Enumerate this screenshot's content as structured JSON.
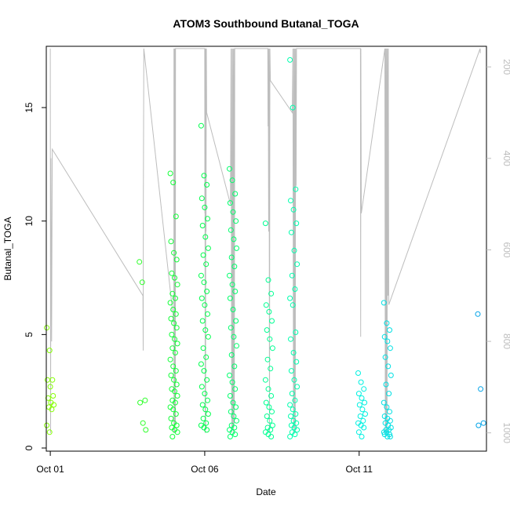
{
  "chart_data": {
    "type": "scatter",
    "title": "ATOM3 Southbound Butanal_TOGA",
    "xlabel": "Date",
    "ylabel": "Butanal_TOGA",
    "xlim": [
      "2017-09-30T20:53:00",
      "2017-10-15T02:56:00"
    ],
    "ylim": [
      0,
      17.7
    ],
    "y2lim": [
      1040,
      155
    ],
    "x_ticks": [
      {
        "value": "2017-10-01T00:00:00",
        "label": "Oct 01"
      },
      {
        "value": "2017-10-06T00:00:00",
        "label": "Oct 06"
      },
      {
        "value": "2017-10-11T00:00:00",
        "label": "Oct 11"
      }
    ],
    "y_ticks": [
      0,
      5,
      10,
      15
    ],
    "y2_ticks": [
      200,
      400,
      600,
      800,
      1000
    ],
    "color_ramp": [
      "#88ff00",
      "#00ff40",
      "#00ffe0",
      "#00a0e8"
    ],
    "line_color": "#bdbdbd",
    "clusters": [
      {
        "t": "2017-10-01T00:00:00",
        "values": [
          5.3,
          4.3,
          3.0,
          3.0,
          2.7,
          2.3,
          2.2,
          2.0,
          1.9,
          1.8,
          1.7,
          1.0,
          0.7
        ]
      },
      {
        "t": "2017-10-04T00:00:00",
        "values": [
          8.2,
          7.3,
          2.1,
          2.0,
          1.1,
          0.8
        ]
      },
      {
        "t": "2017-10-05T00:00:00",
        "values": [
          12.1,
          11.7,
          10.2,
          9.1,
          8.6,
          8.3,
          7.7,
          7.5,
          7.2,
          6.8,
          6.6,
          6.4,
          6.1,
          5.9,
          5.7,
          5.5,
          5.3,
          5.0,
          4.8,
          4.6,
          4.4,
          4.2,
          3.9,
          3.6,
          3.4,
          3.2,
          3.0,
          2.8,
          2.6,
          2.5,
          2.3,
          2.1,
          2.0,
          1.8,
          1.7,
          1.5,
          1.3,
          1.1,
          1.0,
          0.9,
          0.8,
          0.7,
          0.5
        ]
      },
      {
        "t": "2017-10-06T00:00:00",
        "values": [
          14.2,
          12.0,
          11.6,
          11.0,
          10.6,
          10.1,
          9.8,
          9.3,
          8.8,
          8.5,
          8.1,
          7.6,
          7.3,
          6.9,
          6.6,
          6.3,
          5.9,
          5.6,
          5.2,
          4.9,
          4.4,
          4.0,
          3.7,
          3.4,
          3.0,
          2.7,
          2.4,
          2.1,
          1.9,
          1.7,
          1.5,
          1.3,
          1.1,
          1.0,
          0.9,
          0.8
        ]
      },
      {
        "t": "2017-10-06T22:00:00",
        "values": [
          12.3,
          11.8,
          11.2,
          10.8,
          10.4,
          10.0,
          9.6,
          9.2,
          8.8,
          8.4,
          8.0,
          7.6,
          7.2,
          6.9,
          6.6,
          6.1,
          5.6,
          5.3,
          4.9,
          4.5,
          4.1,
          3.6,
          3.2,
          2.9,
          2.6,
          2.3,
          2.0,
          1.8,
          1.6,
          1.4,
          1.2,
          1.0,
          0.9,
          0.8,
          0.7,
          0.6,
          0.5
        ]
      },
      {
        "t": "2017-10-08T02:00:00",
        "values": [
          9.9,
          7.4,
          6.8,
          6.3,
          6.0,
          5.6,
          5.2,
          4.8,
          4.4,
          3.9,
          3.5,
          3.0,
          2.6,
          2.3,
          2.0,
          1.8,
          1.6,
          1.4,
          1.2,
          1.0,
          0.9,
          0.8,
          0.7,
          0.6,
          0.5
        ]
      },
      {
        "t": "2017-10-08T21:00:00",
        "values": [
          17.1,
          15.0,
          11.4,
          10.9,
          10.5,
          9.9,
          9.5,
          8.7,
          8.1,
          7.6,
          7.0,
          6.6,
          6.3,
          5.1,
          4.8,
          4.2,
          3.8,
          3.4,
          3.0,
          2.7,
          2.4,
          2.1,
          1.9,
          1.7,
          1.5,
          1.4,
          1.2,
          1.1,
          1.0,
          0.9,
          0.8,
          0.7,
          0.6,
          0.5
        ]
      },
      {
        "t": "2017-10-11T02:00:00",
        "values": [
          3.3,
          2.9,
          2.6,
          2.4,
          2.2,
          2.0,
          1.9,
          1.7,
          1.5,
          1.4,
          1.2,
          1.1,
          1.0,
          0.9,
          0.7,
          0.5
        ]
      },
      {
        "t": "2017-10-11T22:00:00",
        "values": [
          6.4,
          5.5,
          5.2,
          4.9,
          4.7,
          4.4,
          4.0,
          3.6,
          3.2,
          2.8,
          2.4,
          2.0,
          1.8,
          1.6,
          1.4,
          1.3,
          1.2,
          1.1,
          1.0,
          0.9,
          0.8,
          0.8,
          0.7,
          0.7,
          0.6,
          0.6,
          0.5,
          0.5
        ]
      },
      {
        "t": "2017-10-14T23:00:00",
        "values": [
          5.9,
          2.6,
          1.1,
          1.0
        ]
      }
    ],
    "altitude_track": [
      [
        "2017-10-01T00:00:00",
        160
      ],
      [
        "2017-10-01T00:15:00",
        1000
      ],
      [
        "2017-10-01T00:30:00",
        400
      ],
      [
        "2017-10-01T01:00:00",
        800
      ],
      [
        "2017-10-01T01:30:00",
        380
      ],
      [
        "2017-10-04T00:00:00",
        700
      ],
      [
        "2017-10-04T00:10:00",
        820
      ],
      [
        "2017-10-04T00:20:00",
        500
      ],
      [
        "2017-10-04T00:40:00",
        160
      ],
      [
        "2017-10-05T00:00:00",
        760
      ],
      [
        "2017-10-05T00:05:00",
        160
      ],
      [
        "2017-10-05T00:10:00",
        1000
      ],
      [
        "2017-10-05T00:20:00",
        160
      ],
      [
        "2017-10-05T00:30:00",
        990
      ],
      [
        "2017-10-05T00:40:00",
        160
      ],
      [
        "2017-10-05T00:50:00",
        1000
      ],
      [
        "2017-10-05T01:00:00",
        160
      ],
      [
        "2017-10-05T01:10:00",
        980
      ],
      [
        "2017-10-05T01:20:00",
        160
      ],
      [
        "2017-10-06T00:00:00",
        160
      ],
      [
        "2017-10-06T00:05:00",
        520
      ],
      [
        "2017-10-06T00:10:00",
        160
      ],
      [
        "2017-10-06T00:20:00",
        1000
      ],
      [
        "2017-10-06T00:30:00",
        160
      ],
      [
        "2017-10-06T00:40:00",
        990
      ],
      [
        "2017-10-06T00:50:00",
        160
      ],
      [
        "2017-10-06T01:00:00",
        560
      ],
      [
        "2017-10-06T01:15:00",
        160
      ],
      [
        "2017-10-06T01:30:00",
        300
      ],
      [
        "2017-10-06T20:00:00",
        500
      ],
      [
        "2017-10-06T20:30:00",
        160
      ],
      [
        "2017-10-06T21:00:00",
        1000
      ],
      [
        "2017-10-06T21:20:00",
        160
      ],
      [
        "2017-10-06T21:40:00",
        990
      ],
      [
        "2017-10-06T22:00:00",
        160
      ],
      [
        "2017-10-06T22:20:00",
        1000
      ],
      [
        "2017-10-06T22:40:00",
        160
      ],
      [
        "2017-10-06T23:00:00",
        980
      ],
      [
        "2017-10-06T23:20:00",
        160
      ],
      [
        "2017-10-08T01:00:00",
        160
      ],
      [
        "2017-10-08T01:10:00",
        330
      ],
      [
        "2017-10-08T01:20:00",
        160
      ],
      [
        "2017-10-08T01:40:00",
        560
      ],
      [
        "2017-10-08T02:00:00",
        160
      ],
      [
        "2017-10-08T02:20:00",
        1000
      ],
      [
        "2017-10-08T02:40:00",
        160
      ],
      [
        "2017-10-08T03:00:00",
        230
      ],
      [
        "2017-10-08T20:00:00",
        300
      ],
      [
        "2017-10-08T20:30:00",
        160
      ],
      [
        "2017-10-08T21:00:00",
        1000
      ],
      [
        "2017-10-08T21:20:00",
        160
      ],
      [
        "2017-10-08T21:40:00",
        990
      ],
      [
        "2017-10-08T22:00:00",
        160
      ],
      [
        "2017-10-08T22:20:00",
        1000
      ],
      [
        "2017-10-08T22:40:00",
        160
      ],
      [
        "2017-10-08T23:00:00",
        460
      ],
      [
        "2017-10-08T23:20:00",
        160
      ],
      [
        "2017-10-11T01:00:00",
        160
      ],
      [
        "2017-10-11T01:10:00",
        790
      ],
      [
        "2017-10-11T01:20:00",
        160
      ],
      [
        "2017-10-11T01:40:00",
        520
      ],
      [
        "2017-10-11T20:00:00",
        160
      ],
      [
        "2017-10-11T20:20:00",
        1000
      ],
      [
        "2017-10-11T20:40:00",
        160
      ],
      [
        "2017-10-11T21:00:00",
        990
      ],
      [
        "2017-10-11T21:20:00",
        160
      ],
      [
        "2017-10-11T21:40:00",
        1000
      ],
      [
        "2017-10-11T22:00:00",
        160
      ],
      [
        "2017-10-11T22:20:00",
        700
      ],
      [
        "2017-10-11T22:40:00",
        160
      ],
      [
        "2017-10-11T23:00:00",
        720
      ],
      [
        "2017-10-14T22:00:00",
        160
      ],
      [
        "2017-10-14T22:10:00",
        170
      ]
    ]
  }
}
